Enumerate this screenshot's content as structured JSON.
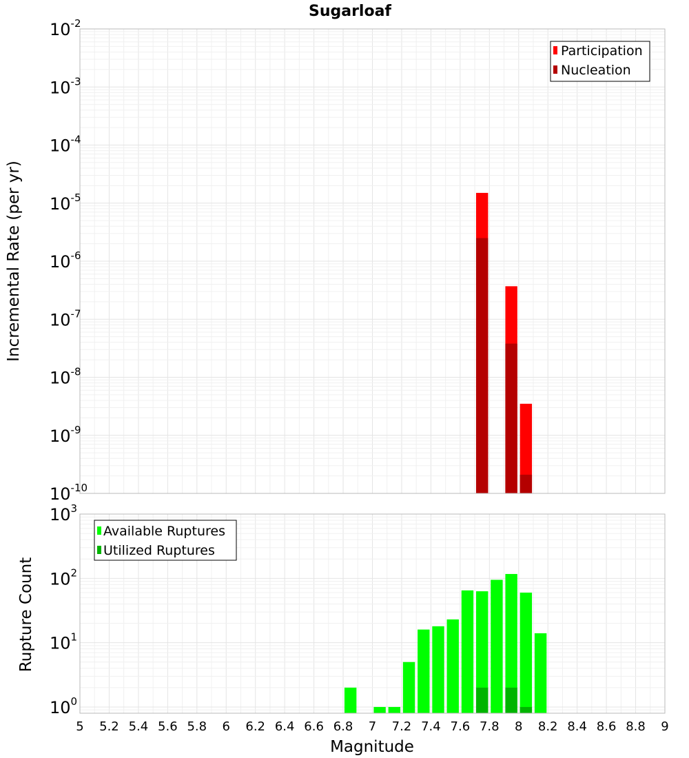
{
  "chart_data": [
    {
      "type": "bar",
      "title": "Sugarloaf",
      "xlabel": "",
      "ylabel": "Incremental Rate (per yr)",
      "yscale": "log",
      "ylim": [
        1e-10,
        0.01
      ],
      "xlim": [
        5,
        9
      ],
      "grid": true,
      "legend_position": "top-right",
      "series": [
        {
          "name": "Participation",
          "color": "#ff0000",
          "points": [
            {
              "x": 7.75,
              "y": 1.5e-05
            },
            {
              "x": 7.95,
              "y": 3.7e-07
            },
            {
              "x": 8.05,
              "y": 3.5e-09
            }
          ]
        },
        {
          "name": "Nucleation",
          "color": "#b40000",
          "points": [
            {
              "x": 7.75,
              "y": 2.5e-06
            },
            {
              "x": 7.95,
              "y": 3.8e-08
            },
            {
              "x": 8.05,
              "y": 2.1e-10
            }
          ]
        }
      ],
      "yticks": {
        "base": "10",
        "exponents": [
          "-10",
          "-9",
          "-8",
          "-7",
          "-6",
          "-5",
          "-4",
          "-3",
          "-2"
        ]
      }
    },
    {
      "type": "bar",
      "title": "",
      "xlabel": "Magnitude",
      "ylabel": "Rupture Count",
      "yscale": "log",
      "ylim": [
        0.8,
        1000
      ],
      "xlim": [
        5,
        9
      ],
      "grid": true,
      "legend_position": "top-left",
      "series": [
        {
          "name": "Available Ruptures",
          "color": "#00ff00",
          "points": [
            {
              "x": 6.85,
              "y": 2
            },
            {
              "x": 7.05,
              "y": 1
            },
            {
              "x": 7.15,
              "y": 1
            },
            {
              "x": 7.25,
              "y": 5
            },
            {
              "x": 7.35,
              "y": 16
            },
            {
              "x": 7.45,
              "y": 18
            },
            {
              "x": 7.55,
              "y": 23
            },
            {
              "x": 7.65,
              "y": 65
            },
            {
              "x": 7.75,
              "y": 63
            },
            {
              "x": 7.85,
              "y": 95
            },
            {
              "x": 7.95,
              "y": 117
            },
            {
              "x": 8.05,
              "y": 60
            },
            {
              "x": 8.15,
              "y": 14
            }
          ]
        },
        {
          "name": "Utilized Ruptures",
          "color": "#00b400",
          "points": [
            {
              "x": 7.75,
              "y": 2
            },
            {
              "x": 7.95,
              "y": 2
            },
            {
              "x": 8.05,
              "y": 1
            }
          ]
        }
      ],
      "yticks": {
        "base": "10",
        "exponents": [
          "0",
          "1",
          "2",
          "3"
        ]
      },
      "xticks": [
        "5",
        "5.2",
        "5.4",
        "5.6",
        "5.8",
        "6",
        "6.2",
        "6.4",
        "6.6",
        "6.8",
        "7",
        "7.2",
        "7.4",
        "7.6",
        "7.8",
        "8",
        "8.2",
        "8.4",
        "8.6",
        "8.8",
        "9"
      ]
    }
  ]
}
